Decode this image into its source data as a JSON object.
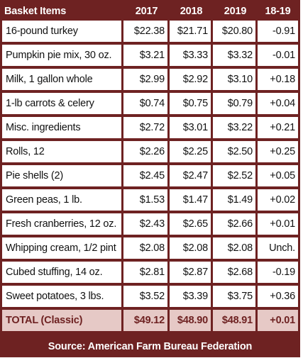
{
  "chart_data": {
    "type": "table",
    "columns": [
      "Basket Items",
      "2017",
      "2018",
      "2019",
      "18-19"
    ],
    "rows": [
      [
        "16-pound turkey",
        "$22.38",
        "$21.71",
        "$20.80",
        "-0.91"
      ],
      [
        "Pumpkin pie mix, 30 oz.",
        "$3.21",
        "$3.33",
        "$3.32",
        "-0.01"
      ],
      [
        "Milk, 1 gallon whole",
        "$2.99",
        "$2.92",
        "$3.10",
        "+0.18"
      ],
      [
        "1-lb carrots & celery",
        "$0.74",
        "$0.75",
        "$0.79",
        "+0.04"
      ],
      [
        "Misc. ingredients",
        "$2.72",
        "$3.01",
        "$3.22",
        "+0.21"
      ],
      [
        "Rolls, 12",
        "$2.26",
        "$2.25",
        "$2.50",
        "+0.25"
      ],
      [
        "Pie shells (2)",
        "$2.45",
        "$2.47",
        "$2.52",
        "+0.05"
      ],
      [
        "Green peas, 1 lb.",
        "$1.53",
        "$1.47",
        "$1.49",
        "+0.02"
      ],
      [
        "Fresh cranberries, 12 oz.",
        "$2.43",
        "$2.65",
        "$2.66",
        "+0.01"
      ],
      [
        "Whipping cream, 1/2 pint",
        "$2.08",
        "$2.08",
        "$2.08",
        "Unch."
      ],
      [
        "Cubed stuffing, 14 oz.",
        "$2.81",
        "$2.87",
        "$2.68",
        "-0.19"
      ],
      [
        "Sweet potatoes, 3 lbs.",
        "$3.52",
        "$3.39",
        "$3.75",
        "+0.36"
      ]
    ],
    "total": [
      "TOTAL (Classic)",
      "$49.12",
      "$48.90",
      "$48.91",
      "+0.01"
    ],
    "source": "Source: American Farm Bureau Federation"
  },
  "colors": {
    "frame": "#6e2222",
    "total_bg": "#e6c9c6",
    "cell_bg": "#ffffff"
  }
}
